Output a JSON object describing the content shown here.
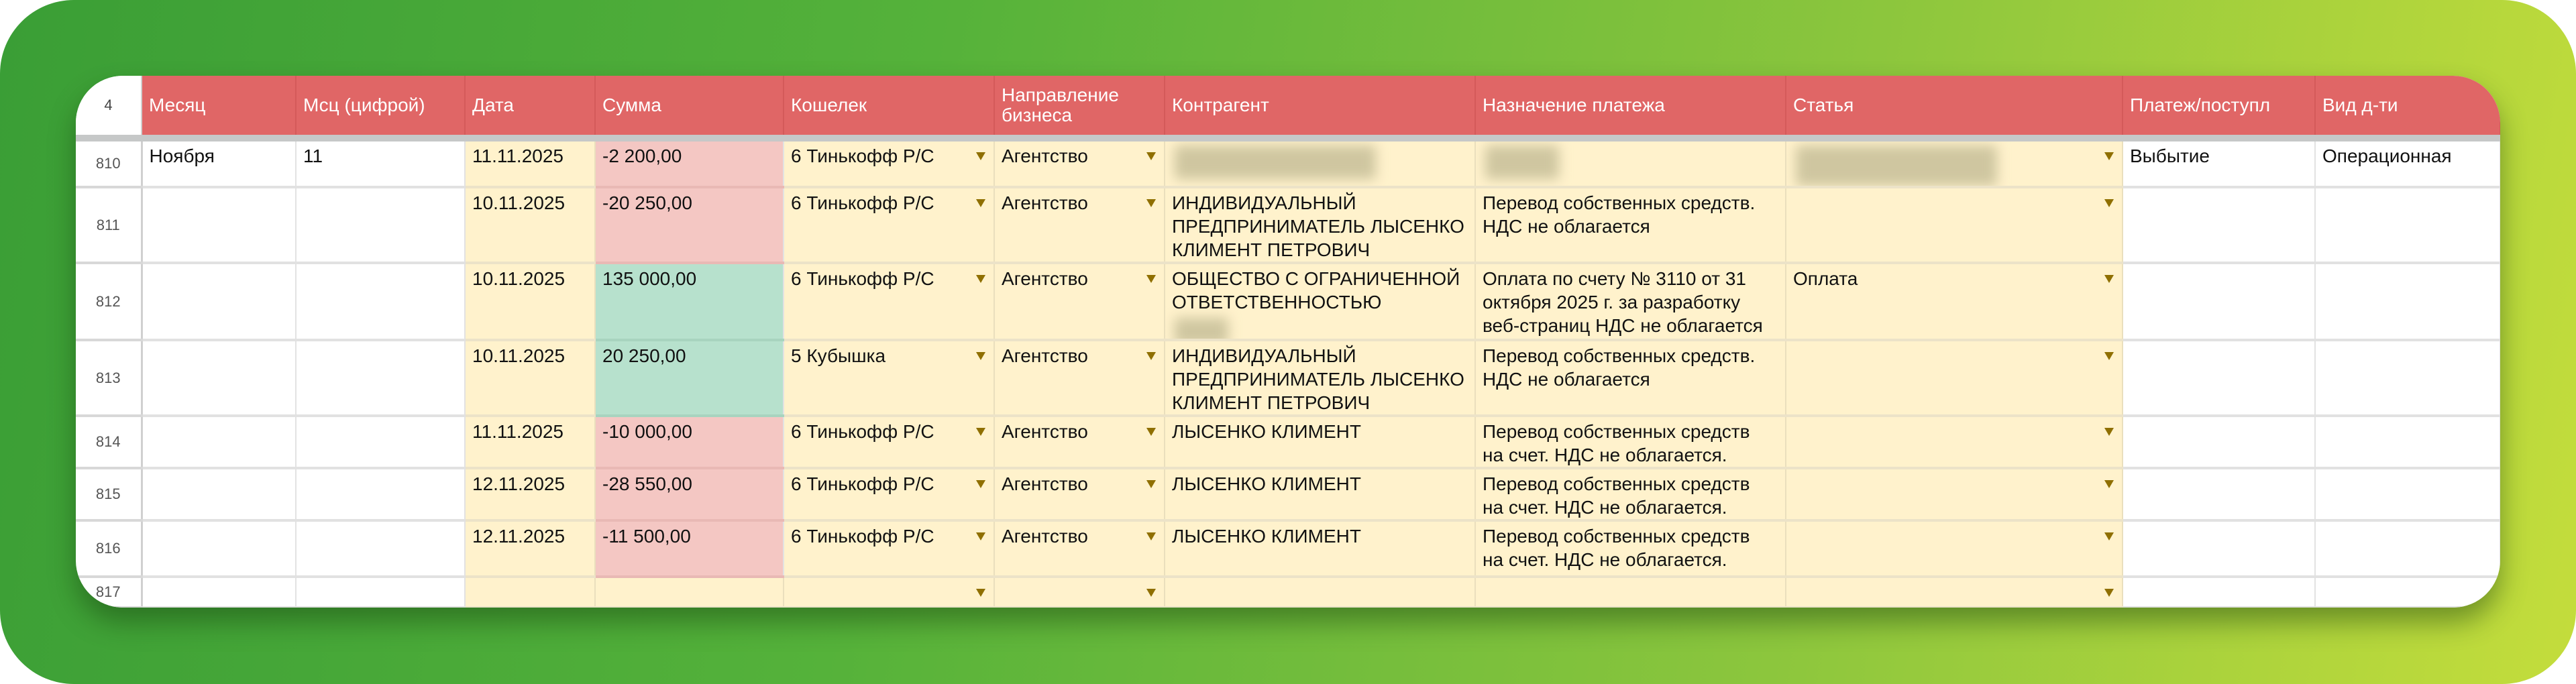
{
  "header": {
    "row_number": "4",
    "columns": [
      "Месяц",
      "Мсц (цифрой)",
      "Дата",
      "Сумма",
      "Кошелек",
      "Направление\nбизнеса",
      "Контрагент",
      "Назначение платежа",
      "Статья",
      "Платеж/поступл",
      "Вид д-ти"
    ]
  },
  "colors": {
    "header": "#e06666",
    "input_cell": "#fff2cc",
    "negative": "#f4c7c3",
    "positive": "#b7e1cd",
    "background_from": "#3a9e36",
    "background_to": "#c4dd3c"
  },
  "rows": [
    {
      "num": "810",
      "month": "Ноября",
      "month_num": "11",
      "date": "11.11.2025",
      "amount": "-2 200,00",
      "sign": "neg",
      "wallet": "6 Тинькофф Р/С",
      "direction": "Агентство",
      "counterparty": "",
      "purpose": "",
      "article": "",
      "flow": "Выбытие",
      "activity": "Операционная",
      "redacted": [
        "counterparty",
        "purpose",
        "article"
      ]
    },
    {
      "num": "811",
      "month": "",
      "month_num": "",
      "date": "10.11.2025",
      "amount": "-20 250,00",
      "sign": "neg",
      "wallet": "6 Тинькофф Р/С",
      "direction": "Агентство",
      "counterparty": "ИНДИВИДУАЛЬНЫЙ\nПРЕДПРИНИМАТЕЛЬ ЛЫСЕНКО\nКЛИМЕНТ ПЕТРОВИЧ",
      "purpose": "Перевод собственных средств.\nНДС не облагается",
      "article": "",
      "flow": "",
      "activity": "",
      "redacted": []
    },
    {
      "num": "812",
      "month": "",
      "month_num": "",
      "date": "10.11.2025",
      "amount": "135 000,00",
      "sign": "pos",
      "wallet": "6 Тинькофф Р/С",
      "direction": "Агентство",
      "counterparty": "ОБЩЕСТВО С ОГРАНИЧЕННОЙ\nОТВЕТСТВЕННОСТЬЮ",
      "purpose": "Оплата по счету №  3110 от 31\nоктября 2025 г.  за разработку\nвеб-страниц НДС не облагается",
      "article": "Оплата",
      "flow": "",
      "activity": "",
      "redacted": [
        "counterparty-tail"
      ]
    },
    {
      "num": "813",
      "month": "",
      "month_num": "",
      "date": "10.11.2025",
      "amount": "20 250,00",
      "sign": "pos",
      "wallet": "5 Кубышка",
      "direction": "Агентство",
      "counterparty": "ИНДИВИДУАЛЬНЫЙ\nПРЕДПРИНИМАТЕЛЬ ЛЫСЕНКО\nКЛИМЕНТ ПЕТРОВИЧ",
      "purpose": "Перевод собственных средств.\nНДС не облагается",
      "article": "",
      "flow": "",
      "activity": "",
      "redacted": []
    },
    {
      "num": "814",
      "month": "",
      "month_num": "",
      "date": "11.11.2025",
      "amount": "-10 000,00",
      "sign": "neg",
      "wallet": "6 Тинькофф Р/С",
      "direction": "Агентство",
      "counterparty": "ЛЫСЕНКО КЛИМЕНТ",
      "purpose": "Перевод собственных средств\nна счет. НДС не облагается.",
      "article": "",
      "flow": "",
      "activity": "",
      "redacted": []
    },
    {
      "num": "815",
      "month": "",
      "month_num": "",
      "date": "12.11.2025",
      "amount": "-28 550,00",
      "sign": "neg",
      "wallet": "6 Тинькофф Р/С",
      "direction": "Агентство",
      "counterparty": "ЛЫСЕНКО КЛИМЕНТ",
      "purpose": "Перевод собственных средств\nна счет. НДС не облагается.",
      "article": "",
      "flow": "",
      "activity": "",
      "redacted": []
    },
    {
      "num": "816",
      "month": "",
      "month_num": "",
      "date": "12.11.2025",
      "amount": "-11 500,00",
      "sign": "neg",
      "wallet": "6 Тинькофф Р/С",
      "direction": "Агентство",
      "counterparty": "ЛЫСЕНКО КЛИМЕНТ",
      "purpose": "Перевод собственных средств\nна счет. НДС не облагается.",
      "article": "",
      "flow": "",
      "activity": "",
      "redacted": []
    },
    {
      "num": "817",
      "month": "",
      "month_num": "",
      "date": "",
      "amount": "",
      "sign": "",
      "wallet": "",
      "direction": "",
      "counterparty": "",
      "purpose": "",
      "article": "",
      "flow": "",
      "activity": "",
      "redacted": []
    }
  ]
}
